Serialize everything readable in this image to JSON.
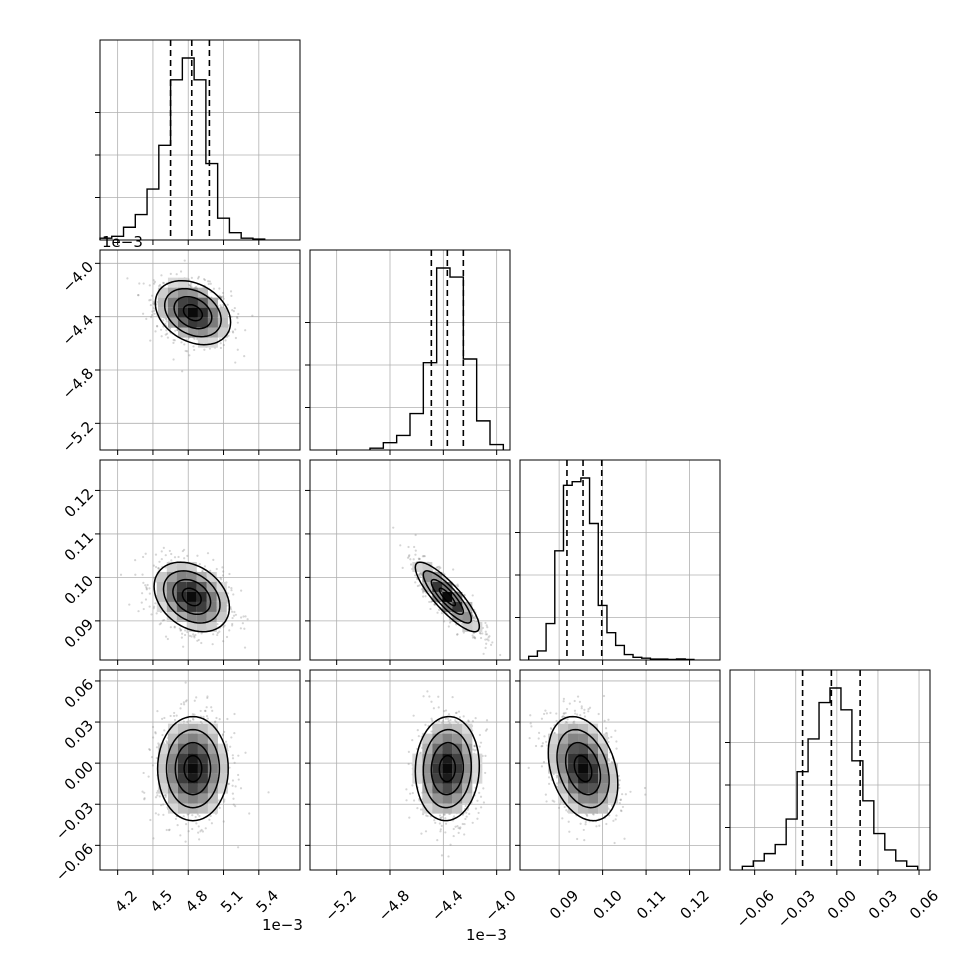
{
  "figure": {
    "title": "",
    "parameters": [
      "",
      "",
      "",
      ""
    ],
    "scale_labels": {
      "col0_x": "1e−3",
      "col1_x": "1e−3",
      "row1_y": "1e−3"
    }
  },
  "chart_data": [
    {
      "type": "histogram",
      "panel": "p0",
      "x_range": [
        4.05,
        5.75
      ],
      "x_ticks": [
        "4.2",
        "4.5",
        "4.8",
        "5.1",
        "5.4"
      ],
      "x_tick_values": [
        4.2,
        4.5,
        4.8,
        5.1,
        5.4
      ],
      "x_scale": "1e-3",
      "bins_x": [
        4.1,
        4.2,
        4.3,
        4.4,
        4.5,
        4.6,
        4.7,
        4.8,
        4.9,
        5.0,
        5.1,
        5.2,
        5.3,
        5.4
      ],
      "counts": [
        1,
        2,
        7,
        14,
        28,
        52,
        88,
        100,
        88,
        42,
        12,
        4,
        1,
        0.5
      ],
      "quantiles": [
        4.65,
        4.83,
        4.98
      ],
      "grid": true
    },
    {
      "type": "scatter-contour",
      "panel": "p1-0",
      "x_range": [
        4.05,
        5.75
      ],
      "y_range": [
        -5.4,
        -3.9
      ],
      "x_ticks": [
        "4.2",
        "4.5",
        "4.8",
        "5.1",
        "5.4"
      ],
      "x_tick_values": [
        4.2,
        4.5,
        4.8,
        5.1,
        5.4
      ],
      "y_ticks": [
        "−4.0",
        "−4.4",
        "−4.8",
        "−5.2"
      ],
      "y_tick_values": [
        -4.0,
        -4.4,
        -4.8,
        -5.2
      ],
      "center": [
        4.84,
        -4.37
      ],
      "sigma": [
        0.16,
        0.12
      ],
      "correlation": -0.3,
      "grid": true
    },
    {
      "type": "histogram",
      "panel": "p1",
      "x_range": [
        -5.4,
        -3.9
      ],
      "x_ticks": [
        "−5.2",
        "−4.8",
        "−4.4",
        "−4.0"
      ],
      "x_tick_values": [
        -5.2,
        -4.8,
        -4.4,
        -4.0
      ],
      "x_scale": "1e-3",
      "bins_x": [
        -4.9,
        -4.8,
        -4.7,
        -4.6,
        -4.5,
        -4.4,
        -4.3,
        -4.2,
        -4.1,
        -4.0
      ],
      "counts": [
        1,
        4,
        8,
        20,
        48,
        100,
        95,
        50,
        16,
        3
      ],
      "quantiles": [
        -4.49,
        -4.37,
        -4.25
      ],
      "grid": true
    },
    {
      "type": "scatter-contour",
      "panel": "p2-0",
      "x_range": [
        4.05,
        5.75
      ],
      "y_range": [
        0.081,
        0.127
      ],
      "x_ticks": [
        "4.2",
        "4.5",
        "4.8",
        "5.1",
        "5.4"
      ],
      "x_tick_values": [
        4.2,
        4.5,
        4.8,
        5.1,
        5.4
      ],
      "y_ticks": [
        "0.09",
        "0.10",
        "0.11",
        "0.12"
      ],
      "y_tick_values": [
        0.09,
        0.1,
        0.11,
        0.12
      ],
      "center": [
        4.83,
        0.0955
      ],
      "sigma": [
        0.16,
        0.004
      ],
      "correlation": -0.3,
      "grid": true
    },
    {
      "type": "scatter-contour",
      "panel": "p2-1",
      "x_range": [
        -5.4,
        -3.9
      ],
      "y_range": [
        0.081,
        0.127
      ],
      "x_ticks": [
        "−5.2",
        "−4.8",
        "−4.4",
        "−4.0"
      ],
      "x_tick_values": [
        -5.2,
        -4.8,
        -4.4,
        -4.0
      ],
      "y_ticks": [
        "0.09",
        "0.10",
        "0.11",
        "0.12"
      ],
      "y_tick_values": [
        0.09,
        0.1,
        0.11,
        0.12
      ],
      "center": [
        -4.37,
        0.0955
      ],
      "sigma": [
        0.12,
        0.004
      ],
      "correlation": -0.85,
      "grid": true
    },
    {
      "type": "histogram",
      "panel": "p2",
      "x_range": [
        0.081,
        0.127
      ],
      "x_ticks": [
        "0.09",
        "0.10",
        "0.11",
        "0.12"
      ],
      "x_tick_values": [
        0.09,
        0.1,
        0.11,
        0.12
      ],
      "bins_x": [
        0.084,
        0.086,
        0.088,
        0.09,
        0.092,
        0.094,
        0.096,
        0.098,
        0.1,
        0.102,
        0.104,
        0.106,
        0.108,
        0.11,
        0.112,
        0.114,
        0.116,
        0.118,
        0.12
      ],
      "counts": [
        2,
        5,
        20,
        60,
        96,
        98,
        100,
        75,
        30,
        15,
        8,
        3,
        1.5,
        1,
        0.5,
        0.5,
        0.3,
        0.6,
        0.3
      ],
      "quantiles": [
        0.0918,
        0.0955,
        0.0998
      ],
      "grid": true
    },
    {
      "type": "scatter-contour",
      "panel": "p3-0",
      "x_range": [
        4.05,
        5.75
      ],
      "y_range": [
        -0.078,
        0.068
      ],
      "x_ticks": [
        "4.2",
        "4.5",
        "4.8",
        "5.1",
        "5.4"
      ],
      "x_tick_values": [
        4.2,
        4.5,
        4.8,
        5.1,
        5.4
      ],
      "y_ticks": [
        "0.06",
        "0.03",
        "0.00",
        "−0.03",
        "−0.06"
      ],
      "y_tick_values": [
        0.06,
        0.03,
        0.0,
        -0.03,
        -0.06
      ],
      "center": [
        4.84,
        -0.004
      ],
      "sigma": [
        0.15,
        0.019
      ],
      "correlation": 0.0,
      "grid": true
    },
    {
      "type": "scatter-contour",
      "panel": "p3-1",
      "x_range": [
        -5.4,
        -3.9
      ],
      "y_range": [
        -0.078,
        0.068
      ],
      "x_ticks": [
        "−5.2",
        "−4.8",
        "−4.4",
        "−4.0"
      ],
      "x_tick_values": [
        -5.2,
        -4.8,
        -4.4,
        -4.0
      ],
      "y_ticks": [
        "0.06",
        "0.03",
        "0.00",
        "−0.03",
        "−0.06"
      ],
      "y_tick_values": [
        0.06,
        0.03,
        0.0,
        -0.03,
        -0.06
      ],
      "center": [
        -4.37,
        -0.004
      ],
      "sigma": [
        0.12,
        0.019
      ],
      "correlation": 0.05,
      "grid": true
    },
    {
      "type": "scatter-contour",
      "panel": "p3-2",
      "x_range": [
        0.081,
        0.127
      ],
      "y_range": [
        -0.078,
        0.068
      ],
      "x_ticks": [
        "0.09",
        "0.10",
        "0.11",
        "0.12"
      ],
      "x_tick_values": [
        0.09,
        0.1,
        0.11,
        0.12
      ],
      "y_ticks": [
        "0.06",
        "0.03",
        "0.00",
        "−0.03",
        "−0.06"
      ],
      "y_tick_values": [
        0.06,
        0.03,
        0.0,
        -0.03,
        -0.06
      ],
      "center": [
        0.0955,
        -0.004
      ],
      "sigma": [
        0.004,
        0.019
      ],
      "correlation": -0.3,
      "grid": true
    },
    {
      "type": "histogram",
      "panel": "p3",
      "x_range": [
        -0.078,
        0.068
      ],
      "x_ticks": [
        "−0.06",
        "−0.03",
        "0.00",
        "0.03",
        "0.06"
      ],
      "x_tick_values": [
        -0.06,
        -0.03,
        0.0,
        0.03,
        0.06
      ],
      "bins_x": [
        -0.065,
        -0.057,
        -0.049,
        -0.041,
        -0.033,
        -0.025,
        -0.017,
        -0.009,
        -0.001,
        0.007,
        0.015,
        0.023,
        0.031,
        0.039,
        0.047,
        0.055
      ],
      "counts": [
        2,
        5,
        9,
        14,
        28,
        54,
        72,
        92,
        100,
        88,
        60,
        38,
        20,
        11,
        5,
        2
      ],
      "quantiles": [
        -0.025,
        -0.004,
        0.017
      ],
      "grid": true
    }
  ]
}
